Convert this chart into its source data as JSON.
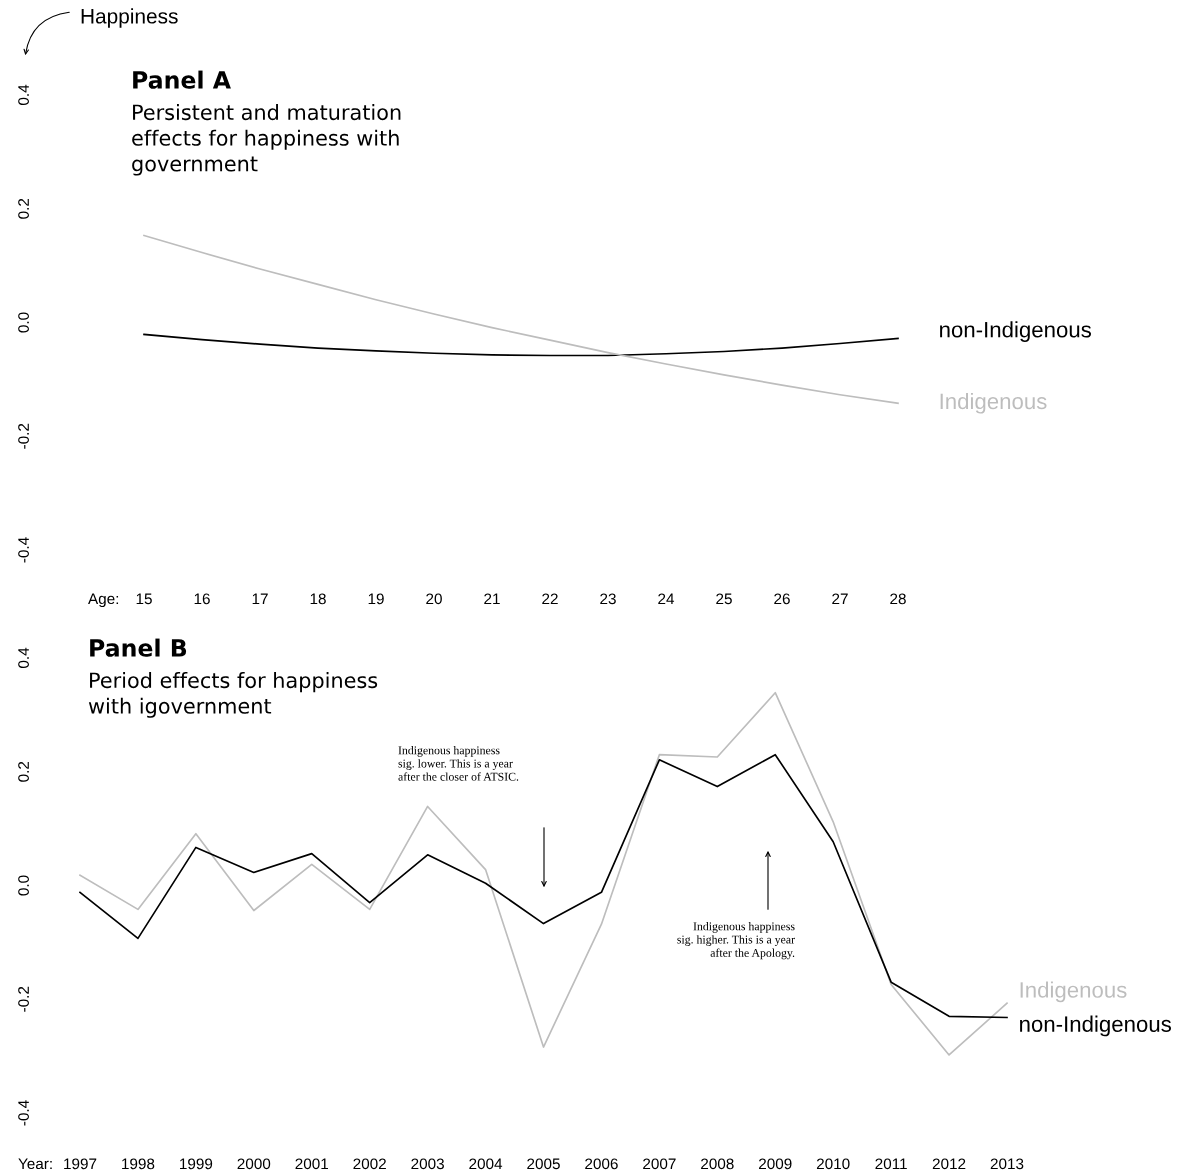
{
  "chart_data": [
    {
      "type": "line",
      "title": "Panel A",
      "subtitle": "Persistent and maturation\neffects for happiness with\ngovernment",
      "ylabel": "Happiness",
      "xlabel": "Age:",
      "x": [
        15,
        16,
        17,
        18,
        19,
        20,
        21,
        22,
        23,
        24,
        25,
        26,
        27,
        28
      ],
      "series": [
        {
          "name": "non-Indigenous",
          "color": "#000000",
          "values": [
            -0.021,
            -0.03,
            -0.038,
            -0.045,
            -0.05,
            -0.054,
            -0.057,
            -0.058,
            -0.058,
            -0.055,
            -0.051,
            -0.045,
            -0.037,
            -0.028
          ]
        },
        {
          "name": "Indigenous",
          "color": "#bdbdbd",
          "values": [
            0.153,
            0.123,
            0.094,
            0.067,
            0.04,
            0.015,
            -0.009,
            -0.031,
            -0.053,
            -0.073,
            -0.092,
            -0.11,
            -0.127,
            -0.142
          ]
        }
      ],
      "xlim": [
        15,
        28
      ],
      "xticks": [
        15,
        16,
        17,
        18,
        19,
        20,
        21,
        22,
        23,
        24,
        25,
        26,
        27,
        28
      ],
      "ylim": [
        -0.4,
        0.4
      ],
      "yticks": [
        -0.4,
        -0.2,
        {
          "value": 0,
          "label": "0.0"
        },
        0.2,
        0.4
      ],
      "legend": false,
      "grid": false
    },
    {
      "type": "line",
      "title": "Panel B",
      "subtitle": "Period effects for happiness\nwith igovernment",
      "xlabel": "Year:",
      "x": [
        1997,
        1998,
        1999,
        2000,
        2001,
        2002,
        2003,
        2004,
        2005,
        2006,
        2007,
        2008,
        2009,
        2010,
        2011,
        2012,
        2013
      ],
      "series": [
        {
          "name": "Indigenous",
          "color": "#bdbdbd",
          "values": [
            0.018,
            -0.042,
            0.091,
            -0.044,
            0.037,
            -0.042,
            0.139,
            0.028,
            -0.284,
            -0.068,
            0.23,
            0.226,
            0.339,
            0.112,
            -0.174,
            -0.298,
            -0.207
          ]
        },
        {
          "name": "non-Indigenous",
          "color": "#000000",
          "values": [
            -0.012,
            -0.093,
            0.067,
            0.023,
            0.056,
            -0.03,
            0.054,
            0.004,
            -0.067,
            -0.012,
            0.221,
            0.174,
            0.23,
            0.077,
            -0.17,
            -0.23,
            -0.232
          ]
        }
      ],
      "annotations": [
        "Indigenous happiness\nsig. lower. This is a year\nafter the closer of ATSIC.",
        "Indigenous happiness\nsig. higher. This is a year\nafter the Apology."
      ],
      "xlim": [
        1997,
        2013
      ],
      "xticks": [
        1997,
        1998,
        1999,
        2000,
        2001,
        2002,
        2003,
        2004,
        2005,
        2006,
        2007,
        2008,
        2009,
        2010,
        2011,
        2012,
        2013
      ],
      "ylim": [
        -0.4,
        0.4
      ],
      "yticks": [
        -0.4,
        -0.2,
        {
          "value": 0,
          "label": "0.0"
        },
        0.2,
        0.4
      ],
      "legend": false,
      "grid": false
    }
  ]
}
